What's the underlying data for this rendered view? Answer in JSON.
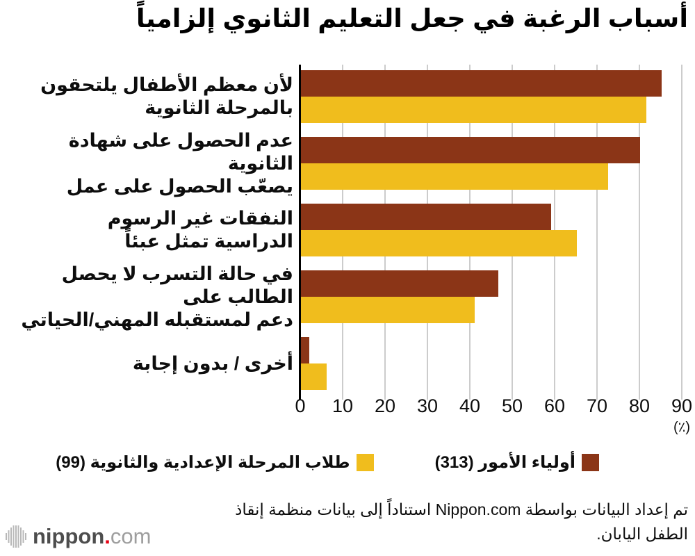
{
  "title": "أسباب الرغبة في جعل التعليم الثانوي إلزامياً",
  "chart_data": {
    "type": "bar",
    "orientation": "horizontal",
    "direction": "rtl",
    "title": "أسباب الرغبة في جعل التعليم الثانوي إلزامياً",
    "xlabel": "(٪)",
    "xlim": [
      0,
      90
    ],
    "x_ticks": [
      0,
      10,
      20,
      30,
      40,
      50,
      60,
      70,
      80,
      90
    ],
    "grid": true,
    "legend_position": "bottom",
    "categories": [
      "لأن معظم الأطفال يلتحقون بالمرحلة الثانوية",
      "عدم الحصول على شهادة الثانوية يصعّب الحصول على عمل",
      "النفقات غير الرسوم الدراسية تمثل عبئاً",
      "في حالة التسرب لا يحصل الطالب على دعم لمستقبله المهني/الحياتي",
      "أخرى / بدون إجابة"
    ],
    "category_lines": [
      [
        "لأن معظم الأطفال يلتحقون",
        "بالمرحلة الثانوية"
      ],
      [
        "عدم الحصول على شهادة الثانوية",
        "يصعّب الحصول على عمل"
      ],
      [
        "النفقات غير الرسوم",
        "الدراسية تمثل عبئاً"
      ],
      [
        "في حالة التسرب لا يحصل الطالب على",
        "دعم لمستقبله المهني/الحياتي"
      ],
      [
        "أخرى / بدون إجابة"
      ]
    ],
    "series": [
      {
        "name": "أولياء الأمور (313)",
        "color": "#8B3517",
        "values": [
          85,
          80,
          59,
          46.5,
          2
        ]
      },
      {
        "name": "طلاب المرحلة الإعدادية والثانوية (99)",
        "color": "#F0BD1D",
        "values": [
          81.5,
          72.5,
          65,
          41,
          6
        ]
      }
    ]
  },
  "legend": {
    "items": [
      {
        "label": "أولياء الأمور (313)",
        "color": "#8B3517"
      },
      {
        "label": "طلاب المرحلة الإعدادية والثانوية (99)",
        "color": "#F0BD1D"
      }
    ]
  },
  "footer": {
    "lines": [
      "تم إعداد البيانات بواسطة Nippon.com استناداً إلى بيانات منظمة إنقاذ",
      "الطفل اليابان."
    ]
  },
  "logo": {
    "brand": "nippon",
    "dot": ".",
    "tld": "com",
    "icon": "soundwave-bars-icon"
  },
  "colors": {
    "parents": "#8B3517",
    "students": "#F0BD1D",
    "grid": "#CCCCCC",
    "axis": "#000000",
    "background": "#FFFFFF",
    "logo_red": "#E60012",
    "logo_dark": "#4D4D4D",
    "logo_light": "#B8B8B8"
  }
}
